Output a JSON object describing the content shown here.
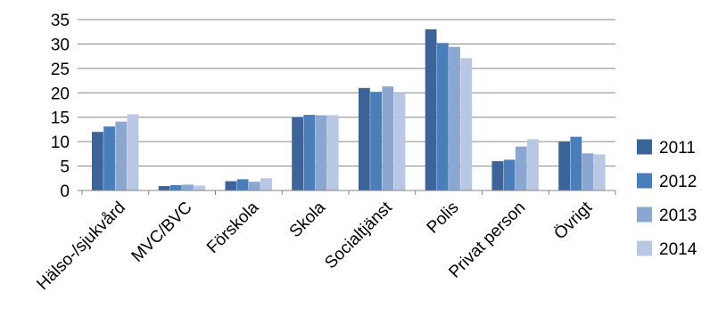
{
  "chart_data": {
    "type": "bar",
    "title": "",
    "xlabel": "",
    "ylabel": "",
    "ylim": [
      0,
      35
    ],
    "yticks": [
      0,
      5,
      10,
      15,
      20,
      25,
      30,
      35
    ],
    "grid": true,
    "legend_position": "right",
    "categories": [
      "Hälso-/sjukvård",
      "MVC/BVC",
      "Förskola",
      "Skola",
      "Socialtjänst",
      "Polis",
      "Privat person",
      "Övrigt"
    ],
    "series": [
      {
        "name": "2011",
        "color": "#3C6499",
        "values": [
          12.0,
          0.9,
          1.9,
          15.0,
          21.0,
          33.0,
          6.0,
          10.0
        ]
      },
      {
        "name": "2012",
        "color": "#4A7EBB",
        "values": [
          13.1,
          1.1,
          2.3,
          15.5,
          20.2,
          30.2,
          6.3,
          11.0
        ]
      },
      {
        "name": "2013",
        "color": "#8AA6D1",
        "values": [
          14.1,
          1.2,
          1.8,
          15.4,
          21.3,
          29.4,
          9.0,
          7.6
        ]
      },
      {
        "name": "2014",
        "color": "#B7C7E4",
        "values": [
          15.6,
          1.0,
          2.5,
          15.4,
          20.0,
          27.1,
          10.5,
          7.4
        ]
      }
    ]
  }
}
